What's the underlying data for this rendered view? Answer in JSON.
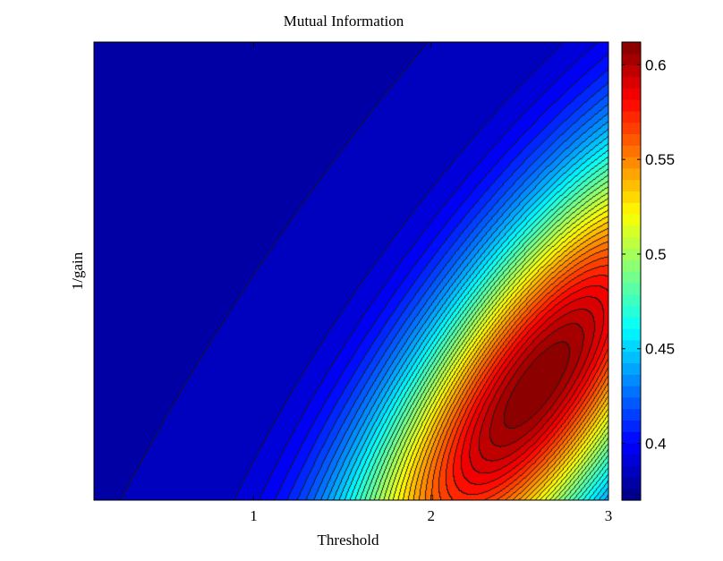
{
  "chart_data": {
    "type": "heatmap",
    "subtype": "filled-contour",
    "title": "Mutual Information",
    "xlabel": "Threshold",
    "ylabel": "1/gain",
    "xlim": [
      0.1,
      3.0
    ],
    "ylim": [
      0.0,
      1.0
    ],
    "xticks": [
      1,
      2,
      3
    ],
    "yticks": [],
    "colormap": "jet",
    "colorbar": {
      "range": [
        0.37,
        0.612
      ],
      "ticks": [
        0.4,
        0.45,
        0.5,
        0.55,
        0.6
      ],
      "tick_labels": [
        "0.4",
        "0.45",
        "0.5",
        "0.55",
        "0.6"
      ]
    },
    "contour_levels": 40,
    "peak": {
      "threshold": 2.6,
      "inv_gain": 0.25,
      "value": 0.612
    },
    "minimum_region": "top-left corner (threshold≈0.1, 1/gain≈1.0)",
    "grid": false
  }
}
